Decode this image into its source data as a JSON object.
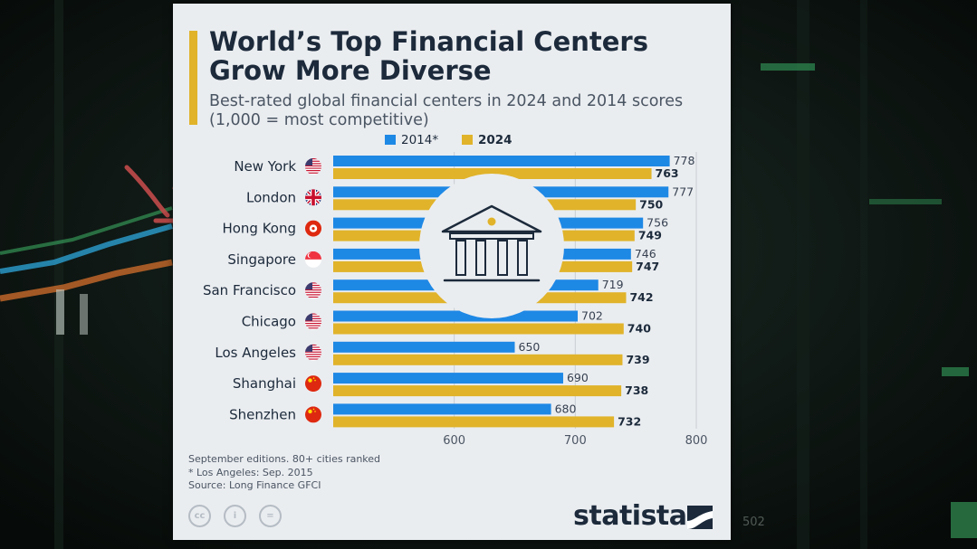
{
  "title": "World’s Top Financial Centers Grow More Diverse",
  "subtitle": "Best-rated global financial centers in 2024 and 2014 scores (1,000 = most competitive)",
  "colors": {
    "s2014": "#1e88e5",
    "s2024": "#e0b32a",
    "accent": "#e0b32a",
    "text": "#1c2a3b"
  },
  "chart_data": {
    "type": "bar",
    "orientation": "horizontal",
    "title": "World’s Top Financial Centers Grow More Diverse",
    "subtitle": "Best-rated global financial centers in 2024 and 2014 scores (1,000 = most competitive)",
    "categories": [
      "New York",
      "London",
      "Hong Kong",
      "Singapore",
      "San Francisco",
      "Chicago",
      "Los Angeles",
      "Shanghai",
      "Shenzhen"
    ],
    "flags": [
      "us-flag-icon",
      "uk-flag-icon",
      "hk-flag-icon",
      "sg-flag-icon",
      "us-flag-icon",
      "us-flag-icon",
      "us-flag-icon",
      "cn-flag-icon",
      "cn-flag-icon"
    ],
    "series": [
      {
        "name": "2014*",
        "values": [
          778,
          777,
          756,
          746,
          719,
          702,
          650,
          690,
          680
        ]
      },
      {
        "name": "2024",
        "values": [
          763,
          750,
          749,
          747,
          742,
          740,
          739,
          738,
          732
        ]
      }
    ],
    "xticks": [
      600,
      700,
      800
    ],
    "xlim": [
      500,
      800
    ],
    "legend": "top",
    "grid": true
  },
  "notes": [
    "September editions. 80+ cities ranked",
    "* Los Angeles: Sep. 2015",
    "Source: Long Finance GFCI"
  ],
  "license_icons": [
    "cc",
    "i",
    "="
  ],
  "brand": "statista"
}
